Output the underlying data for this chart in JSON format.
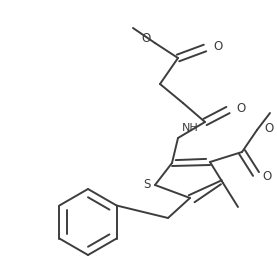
{
  "bg_color": "#ffffff",
  "line_color": "#3d3d3d",
  "line_width": 1.4,
  "figsize": [
    2.77,
    2.75
  ],
  "dpi": 100,
  "xlim": [
    0,
    277
  ],
  "ylim": [
    0,
    275
  ]
}
